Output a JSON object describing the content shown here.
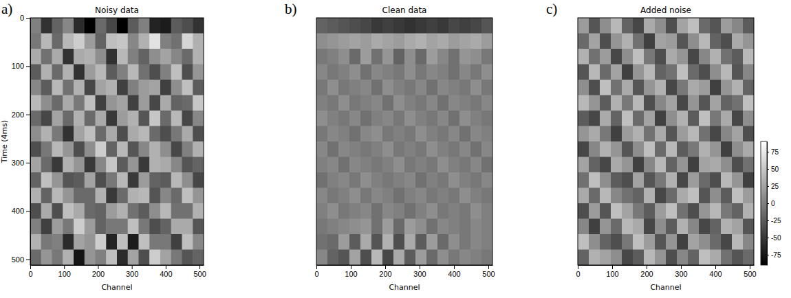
{
  "chart_data": [
    {
      "type": "heatmap",
      "label": "a)",
      "title": "Noisy data",
      "xlabel": "Channel",
      "ylabel": "Time (4ms)",
      "xlim": [
        0,
        512
      ],
      "ylim": [
        0,
        512
      ],
      "xticks": [
        0,
        100,
        200,
        300,
        400,
        500
      ],
      "yticks": [
        0,
        100,
        200,
        300,
        400,
        500
      ],
      "zlim": [
        -90,
        90
      ],
      "x": [
        16,
        48,
        80,
        112,
        144,
        176,
        208,
        240,
        272,
        304,
        336,
        368,
        400,
        432,
        464,
        496
      ],
      "y": [
        16,
        48,
        80,
        112,
        144,
        176,
        208,
        240,
        272,
        304,
        336,
        368,
        400,
        432,
        464,
        496
      ],
      "cells": [
        [
          0,
          -55,
          -20,
          5,
          -60,
          -90,
          -15,
          -40,
          -90,
          -25,
          0,
          -65,
          -70,
          -25,
          -35,
          -55
        ],
        [
          -5,
          40,
          -15,
          40,
          55,
          20,
          -20,
          45,
          50,
          5,
          35,
          70,
          0,
          -10,
          60,
          35
        ],
        [
          30,
          -10,
          30,
          -55,
          30,
          35,
          10,
          -55,
          40,
          0,
          -20,
          10,
          25,
          5,
          -15,
          35
        ],
        [
          -25,
          35,
          -15,
          35,
          -55,
          20,
          40,
          -25,
          0,
          40,
          -10,
          -35,
          0,
          45,
          -35,
          15
        ],
        [
          5,
          -25,
          40,
          -10,
          35,
          -40,
          25,
          35,
          -45,
          0,
          20,
          25,
          -45,
          10,
          45,
          -25
        ],
        [
          40,
          10,
          -15,
          30,
          -5,
          45,
          -45,
          15,
          25,
          -45,
          20,
          -40,
          30,
          -20,
          -15,
          50
        ],
        [
          -15,
          -40,
          25,
          -15,
          35,
          -15,
          30,
          -50,
          20,
          35,
          -30,
          50,
          -15,
          40,
          -40,
          5
        ],
        [
          10,
          35,
          -5,
          -55,
          25,
          45,
          -15,
          30,
          -35,
          30,
          40,
          -15,
          -35,
          -5,
          30,
          -35
        ],
        [
          -35,
          -5,
          40,
          15,
          -35,
          10,
          55,
          -20,
          40,
          -30,
          5,
          35,
          10,
          -40,
          0,
          35
        ],
        [
          25,
          -15,
          -50,
          35,
          15,
          -50,
          5,
          50,
          -25,
          15,
          -50,
          35,
          30,
          5,
          -30,
          -20
        ],
        [
          -20,
          45,
          15,
          -30,
          -25,
          25,
          -35,
          -5,
          40,
          -50,
          20,
          -20,
          -25,
          40,
          10,
          -40
        ],
        [
          35,
          -20,
          40,
          15,
          -15,
          -15,
          35,
          -50,
          -15,
          35,
          40,
          -30,
          5,
          -15,
          45,
          15
        ],
        [
          -35,
          30,
          -35,
          45,
          30,
          -15,
          -20,
          20,
          35,
          -10,
          -25,
          10,
          40,
          -10,
          -10,
          35
        ],
        [
          0,
          -45,
          20,
          -5,
          55,
          20,
          -20,
          -5,
          -5,
          45,
          -5,
          -35,
          -20,
          30,
          30,
          -30
        ],
        [
          35,
          -5,
          0,
          -60,
          25,
          15,
          55,
          -65,
          45,
          -70,
          45,
          -5,
          -5,
          -45,
          45,
          5
        ],
        [
          -15,
          15,
          -5,
          35,
          -75,
          15,
          0,
          45,
          -60,
          25,
          -35,
          55,
          25,
          -5,
          -30,
          -20
        ]
      ]
    },
    {
      "type": "heatmap",
      "label": "b)",
      "title": "Clean data",
      "xlabel": "Channel",
      "xlim": [
        0,
        512
      ],
      "ylim": [
        0,
        512
      ],
      "xticks": [
        0,
        100,
        200,
        300,
        400,
        500
      ],
      "tick_labels": "x",
      "zlim": [
        -90,
        90
      ],
      "x": [
        16,
        48,
        80,
        112,
        144,
        176,
        208,
        240,
        272,
        304,
        336,
        368,
        400,
        432,
        464,
        496
      ],
      "y": [
        16,
        48,
        80,
        112,
        144,
        176,
        208,
        240,
        272,
        304,
        336,
        368,
        400,
        432,
        464,
        496
      ],
      "cells": [
        [
          -20,
          -25,
          -30,
          -35,
          -40,
          -50,
          -45,
          -50,
          -55,
          -50,
          -45,
          -50,
          -40,
          -45,
          -40,
          -30
        ],
        [
          10,
          15,
          20,
          25,
          20,
          30,
          25,
          20,
          30,
          35,
          25,
          30,
          20,
          25,
          30,
          20
        ],
        [
          -5,
          0,
          10,
          -15,
          20,
          -10,
          15,
          -20,
          10,
          -15,
          20,
          5,
          -10,
          15,
          10,
          -5
        ],
        [
          5,
          -5,
          0,
          10,
          -10,
          5,
          0,
          -5,
          10,
          -5,
          5,
          0,
          -10,
          5,
          -5,
          10
        ],
        [
          -5,
          10,
          -5,
          0,
          5,
          -10,
          10,
          0,
          -5,
          5,
          -10,
          5,
          0,
          -5,
          10,
          -5
        ],
        [
          0,
          -5,
          10,
          -5,
          0,
          5,
          -10,
          10,
          0,
          -5,
          5,
          -10,
          5,
          0,
          -5,
          5
        ],
        [
          10,
          0,
          -5,
          5,
          -10,
          0,
          5,
          -5,
          10,
          0,
          -5,
          5,
          -10,
          10,
          0,
          -5
        ],
        [
          -5,
          5,
          0,
          -10,
          5,
          10,
          -5,
          0,
          -5,
          10,
          0,
          -5,
          5,
          -10,
          5,
          0
        ],
        [
          5,
          -10,
          5,
          0,
          -5,
          0,
          10,
          -5,
          0,
          -5,
          10,
          0,
          -5,
          5,
          -10,
          5
        ],
        [
          0,
          5,
          -10,
          5,
          0,
          -5,
          0,
          10,
          -5,
          0,
          -5,
          10,
          0,
          -5,
          5,
          -10
        ],
        [
          -10,
          0,
          5,
          -5,
          10,
          0,
          -5,
          0,
          5,
          -10,
          0,
          -5,
          10,
          0,
          -5,
          5
        ],
        [
          5,
          -5,
          0,
          10,
          -5,
          5,
          0,
          -10,
          0,
          5,
          -5,
          0,
          -5,
          10,
          0,
          -5
        ],
        [
          0,
          10,
          -5,
          0,
          5,
          -10,
          5,
          0,
          -10,
          0,
          10,
          -5,
          0,
          -5,
          10,
          0
        ],
        [
          -5,
          0,
          5,
          10,
          15,
          -10,
          20,
          -15,
          20,
          10,
          -10,
          5,
          0,
          -5,
          5,
          0
        ],
        [
          -10,
          -15,
          20,
          -25,
          30,
          -30,
          35,
          -35,
          30,
          -25,
          20,
          -15,
          10,
          -5,
          5,
          0
        ],
        [
          5,
          -20,
          -30,
          25,
          -35,
          40,
          -40,
          30,
          -25,
          20,
          -15,
          10,
          -5,
          5,
          0,
          -5
        ]
      ]
    },
    {
      "type": "heatmap",
      "label": "c)",
      "title": "Added noise",
      "xlabel": "Channel",
      "xlim": [
        0,
        512
      ],
      "ylim": [
        0,
        512
      ],
      "xticks": [
        0,
        100,
        200,
        300,
        400,
        500
      ],
      "tick_labels": "x",
      "zlim": [
        -90,
        90
      ],
      "colorbar": {
        "ticks": [
          -75,
          -50,
          -25,
          0,
          25,
          50,
          75
        ]
      },
      "x": [
        16,
        48,
        80,
        112,
        144,
        176,
        208,
        240,
        272,
        304,
        336,
        368,
        400,
        432,
        464,
        496
      ],
      "y": [
        16,
        48,
        80,
        112,
        144,
        176,
        208,
        240,
        272,
        304,
        336,
        368,
        400,
        432,
        464,
        496
      ],
      "cells": [
        [
          20,
          -30,
          10,
          40,
          -20,
          -40,
          30,
          10,
          -35,
          25,
          45,
          -15,
          -30,
          20,
          5,
          -25
        ],
        [
          -15,
          25,
          -35,
          15,
          35,
          -10,
          -45,
          25,
          20,
          -30,
          10,
          40,
          -20,
          -35,
          30,
          15
        ],
        [
          35,
          -10,
          20,
          -40,
          10,
          45,
          -5,
          -35,
          30,
          15,
          -40,
          5,
          35,
          -10,
          -25,
          40
        ],
        [
          -30,
          40,
          -15,
          25,
          -45,
          15,
          40,
          -20,
          -10,
          45,
          -15,
          -35,
          10,
          40,
          -30,
          5
        ],
        [
          10,
          -35,
          45,
          -10,
          30,
          -30,
          15,
          35,
          -40,
          -5,
          30,
          20,
          -45,
          15,
          35,
          -20
        ],
        [
          40,
          15,
          -25,
          35,
          -5,
          40,
          -35,
          5,
          25,
          -40,
          15,
          -30,
          25,
          -20,
          -10,
          45
        ],
        [
          -25,
          -40,
          30,
          -20,
          45,
          -15,
          25,
          -45,
          10,
          35,
          -25,
          45,
          -5,
          30,
          -40,
          10
        ],
        [
          15,
          30,
          -5,
          -45,
          20,
          35,
          -10,
          30,
          -30,
          20,
          40,
          -10,
          -40,
          5,
          25,
          -35
        ],
        [
          -40,
          5,
          35,
          15,
          -30,
          10,
          45,
          -15,
          40,
          -25,
          -5,
          35,
          15,
          -45,
          10,
          30
        ],
        [
          25,
          -20,
          -40,
          30,
          15,
          -45,
          5,
          40,
          -20,
          15,
          -45,
          25,
          30,
          10,
          -35,
          -10
        ],
        [
          -10,
          45,
          10,
          -25,
          -35,
          25,
          -30,
          -5,
          35,
          -40,
          20,
          -15,
          -35,
          40,
          15,
          -45
        ],
        [
          30,
          -15,
          40,
          5,
          -10,
          -20,
          35,
          -40,
          -15,
          30,
          45,
          -30,
          10,
          -25,
          45,
          20
        ],
        [
          -35,
          20,
          -30,
          45,
          25,
          -5,
          -25,
          20,
          45,
          -10,
          -35,
          15,
          40,
          -5,
          -20,
          35
        ],
        [
          5,
          -45,
          15,
          -15,
          40,
          30,
          -40,
          10,
          -25,
          35,
          5,
          -40,
          -20,
          35,
          25,
          -30
        ],
        [
          45,
          10,
          -20,
          -35,
          -5,
          45,
          20,
          -30,
          15,
          -45,
          25,
          10,
          -15,
          -40,
          40,
          5
        ],
        [
          -20,
          35,
          25,
          10,
          -40,
          -25,
          40,
          15,
          -35,
          5,
          -20,
          45,
          30,
          -10,
          -30,
          -15
        ]
      ]
    }
  ]
}
